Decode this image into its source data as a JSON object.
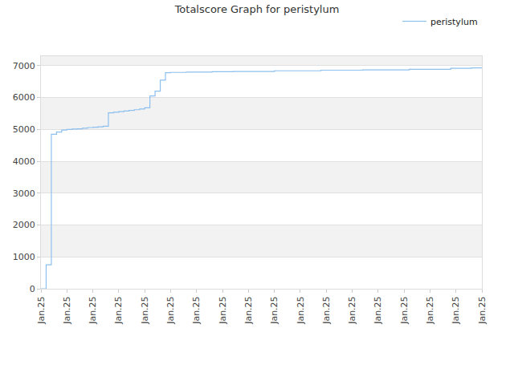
{
  "chart_data": {
    "type": "line",
    "title": "Totalscore Graph for peristylum",
    "categories": [
      "Jan.25",
      null,
      null,
      null,
      null,
      "Jan.25",
      null,
      null,
      null,
      null,
      "Jan.25",
      null,
      null,
      null,
      null,
      "Jan.25",
      null,
      null,
      null,
      null,
      "Jan.25",
      null,
      null,
      null,
      null,
      "Jan.25",
      null,
      null,
      null,
      null,
      "Jan.25",
      null,
      null,
      null,
      null,
      "Jan.25",
      null,
      null,
      null,
      null,
      "Jan.25",
      null,
      null,
      null,
      null,
      "Jan.25",
      null,
      null,
      null,
      null,
      "Jan.25",
      null,
      null,
      null,
      null,
      "Jan.25",
      null,
      null,
      null,
      null,
      "Jan.25",
      null,
      null,
      null,
      null,
      "Jan.25",
      null,
      null,
      null,
      null,
      "Jan.25",
      null,
      null,
      null,
      null,
      "Jan.25",
      null,
      null,
      null,
      null,
      "Jan.25",
      null,
      null,
      null,
      null,
      "Jan.25"
    ],
    "series": [
      {
        "name": "peristylum",
        "color": "#8cc0ee",
        "values": [
          0,
          750,
          4850,
          4920,
          4980,
          5000,
          5010,
          5020,
          5040,
          5060,
          5070,
          5080,
          5100,
          5520,
          5540,
          5560,
          5580,
          5600,
          5620,
          5640,
          5680,
          6050,
          6200,
          6550,
          6780,
          6790,
          6790,
          6790,
          6800,
          6800,
          6800,
          6800,
          6800,
          6810,
          6810,
          6810,
          6810,
          6820,
          6820,
          6820,
          6820,
          6820,
          6820,
          6820,
          6820,
          6840,
          6840,
          6840,
          6840,
          6840,
          6840,
          6840,
          6840,
          6840,
          6860,
          6860,
          6860,
          6860,
          6860,
          6860,
          6860,
          6860,
          6870,
          6870,
          6870,
          6870,
          6870,
          6870,
          6870,
          6870,
          6870,
          6890,
          6890,
          6890,
          6890,
          6890,
          6890,
          6890,
          6890,
          6920,
          6920,
          6920,
          6920,
          6930,
          6930,
          6930
        ]
      }
    ],
    "ylim": [
      0,
      7300
    ],
    "yticks": [
      0,
      1000,
      2000,
      3000,
      4000,
      5000,
      6000,
      7000
    ],
    "grid": true,
    "legend": "top right"
  }
}
